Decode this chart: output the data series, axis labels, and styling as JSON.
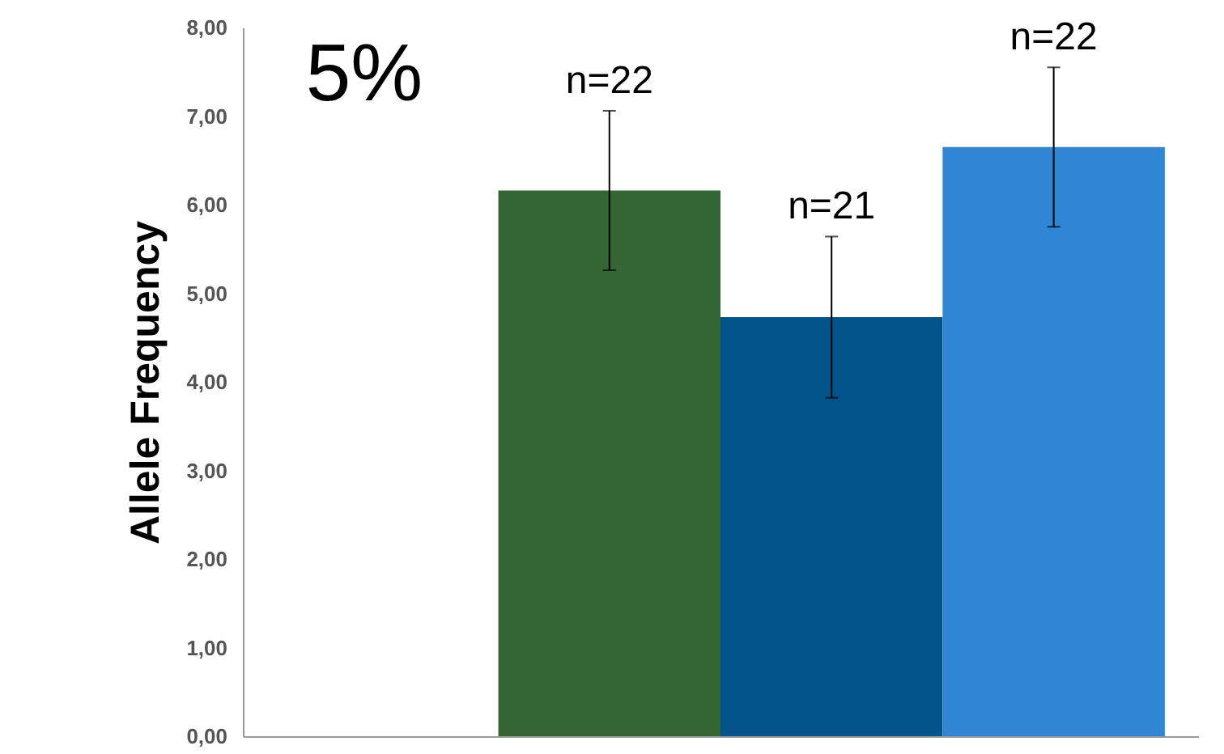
{
  "chart_data": {
    "type": "bar",
    "ylabel": "Allele Frequency",
    "categories": [
      null,
      null,
      null,
      null
    ],
    "values": [
      null,
      6.16,
      4.73,
      6.65
    ],
    "colors": [
      null,
      "#336633",
      "#03538b",
      "#2e86d4"
    ],
    "errors": [
      null,
      0.9,
      0.91,
      0.9
    ],
    "annotations": [
      "5%",
      "n=22",
      "n=21",
      "n=22"
    ],
    "ylim": [
      0,
      8
    ],
    "yticks": [
      {
        "value": 0,
        "label": "0,00"
      },
      {
        "value": 1,
        "label": "1,00"
      },
      {
        "value": 2,
        "label": "2,00"
      },
      {
        "value": 3,
        "label": "3,00"
      },
      {
        "value": 4,
        "label": "4,00"
      },
      {
        "value": 5,
        "label": "5,00"
      },
      {
        "value": 6,
        "label": "6,00"
      },
      {
        "value": 7,
        "label": "7,00"
      },
      {
        "value": 8,
        "label": "8,00"
      }
    ],
    "grid": false
  }
}
